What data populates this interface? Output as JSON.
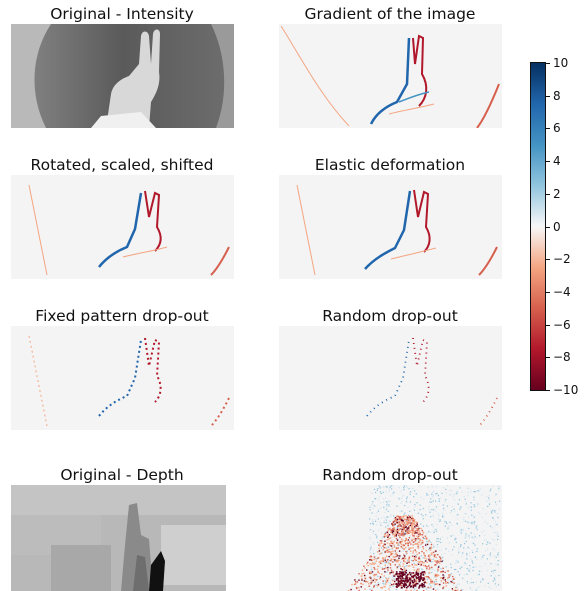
{
  "panels": [
    {
      "id": "orig-intensity",
      "title": "Original - Intensity"
    },
    {
      "id": "gradient",
      "title": "Gradient of the image"
    },
    {
      "id": "rotated",
      "title": "Rotated, scaled, shifted"
    },
    {
      "id": "elastic",
      "title": "Elastic deformation"
    },
    {
      "id": "fixed-dropout",
      "title": "Fixed pattern drop-out"
    },
    {
      "id": "random-dropout-1",
      "title": "Random drop-out"
    },
    {
      "id": "orig-depth",
      "title": "Original - Depth"
    },
    {
      "id": "random-dropout-2",
      "title": "Random drop-out"
    }
  ],
  "colorbar": {
    "ticks": [
      {
        "value": 10,
        "label": "10"
      },
      {
        "value": 8,
        "label": "8"
      },
      {
        "value": 6,
        "label": "6"
      },
      {
        "value": 4,
        "label": "4"
      },
      {
        "value": 2,
        "label": "2"
      },
      {
        "value": 0,
        "label": "0"
      },
      {
        "value": -2,
        "label": "−2"
      },
      {
        "value": -4,
        "label": "−4"
      },
      {
        "value": -6,
        "label": "−6"
      },
      {
        "value": -8,
        "label": "−8"
      },
      {
        "value": -10,
        "label": "−10"
      }
    ],
    "range": [
      -10,
      10
    ],
    "colormap": "RdBu"
  }
}
